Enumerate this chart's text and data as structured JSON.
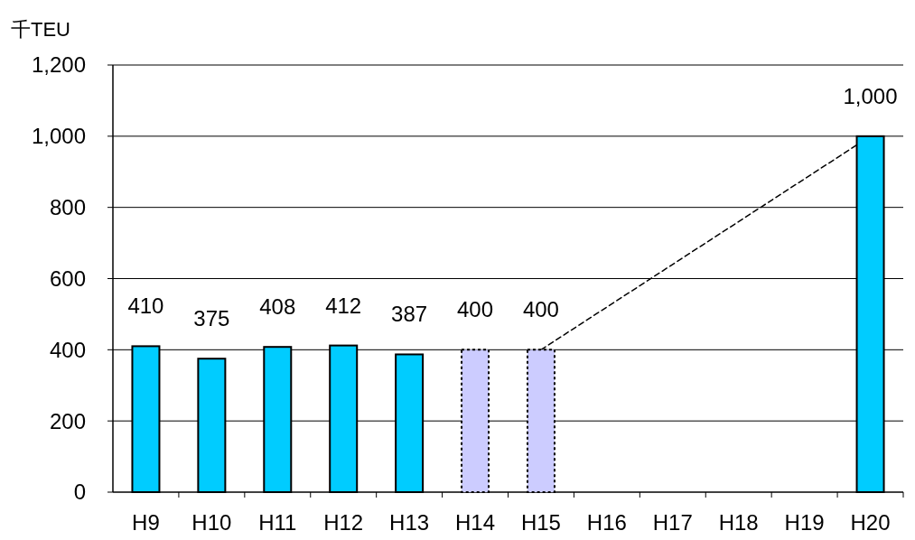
{
  "chart_data": {
    "type": "bar",
    "ylabel": "千TEU",
    "categories": [
      "H9",
      "H10",
      "H11",
      "H12",
      "H13",
      "H14",
      "H15",
      "H16",
      "H17",
      "H18",
      "H19",
      "H20"
    ],
    "series": [
      {
        "color": "#00ccff",
        "line_style": "solid",
        "values": [
          410,
          375,
          408,
          412,
          387,
          null,
          null,
          null,
          null,
          null,
          null,
          1000
        ],
        "value_labels": [
          "410",
          "375",
          "408",
          "412",
          "387",
          null,
          null,
          null,
          null,
          null,
          null,
          "1,000"
        ]
      },
      {
        "color": "#ccccff",
        "line_style": "dotted",
        "values": [
          null,
          null,
          null,
          null,
          null,
          400,
          400,
          null,
          null,
          null,
          null,
          null
        ],
        "value_labels": [
          null,
          null,
          null,
          null,
          null,
          "400",
          "400",
          null,
          null,
          null,
          null,
          null
        ]
      },
      {
        "type": "line",
        "color": "#000000",
        "line_style": "dashed",
        "values": [
          null,
          null,
          null,
          null,
          null,
          null,
          400,
          null,
          null,
          null,
          null,
          1000
        ]
      }
    ],
    "ylim": [
      0,
      1200
    ],
    "yticks": [
      0,
      200,
      400,
      600,
      800,
      {
        "value": 1000,
        "label": "1,000"
      },
      {
        "value": 1200,
        "label": "1,200"
      }
    ],
    "grid": "y"
  }
}
